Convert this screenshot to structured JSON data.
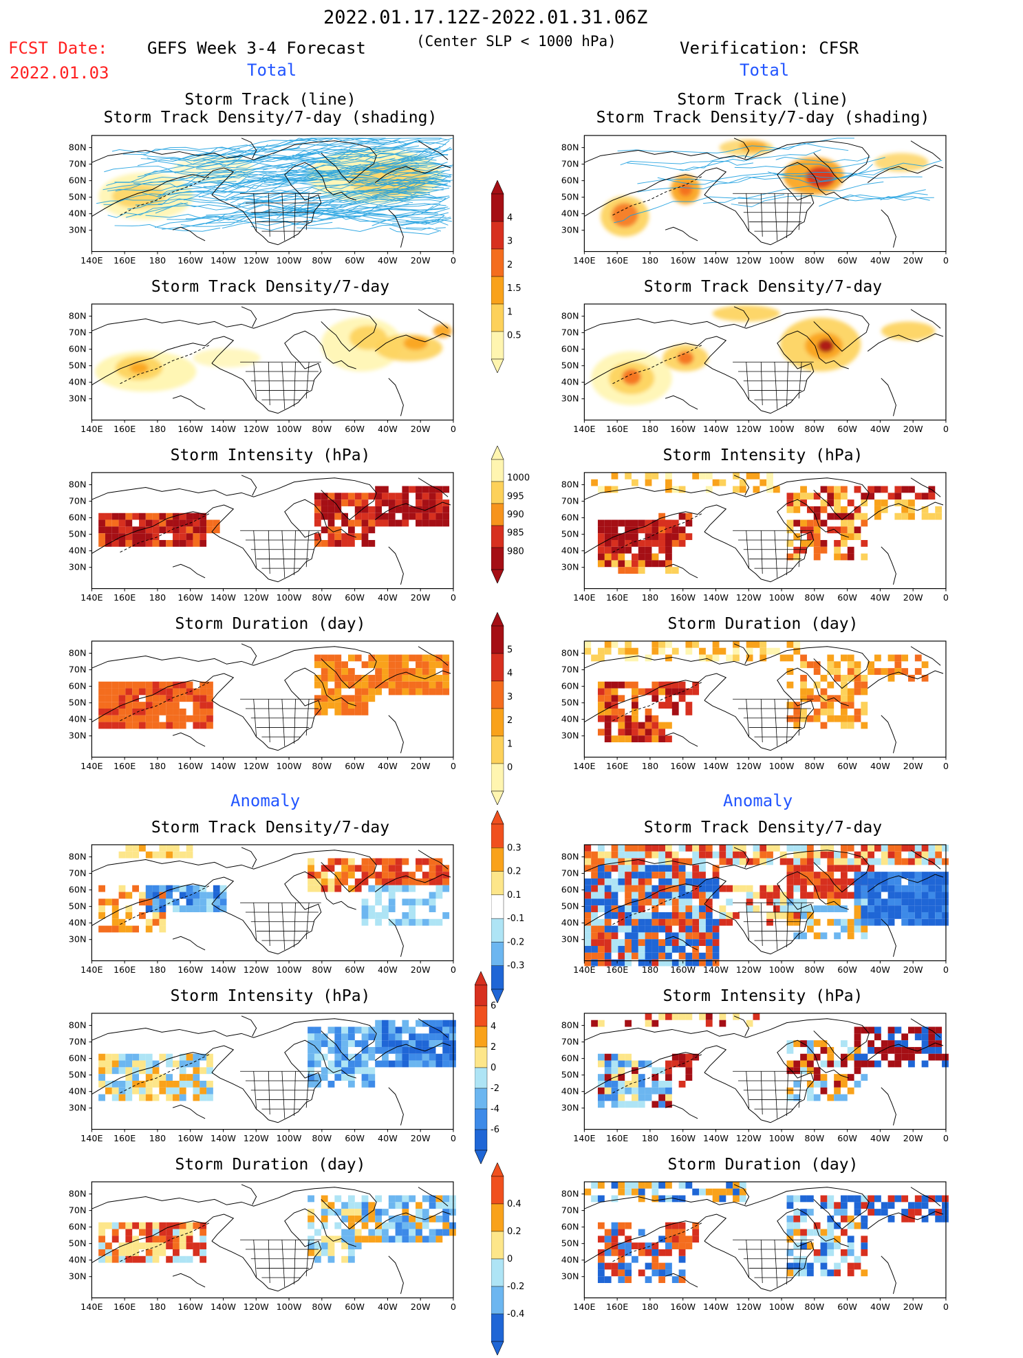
{
  "header": {
    "title": "2022.01.17.12Z-2022.01.31.06Z",
    "subtitle": "(Center SLP < 1000 hPa)",
    "fcst_label": "FCST Date:",
    "fcst_date": "2022.01.03",
    "model_title": "GEFS Week 3-4 Forecast",
    "verification_title": "Verification: CFSR"
  },
  "sections": {
    "total_label": "Total",
    "anomaly_label": "Anomaly"
  },
  "panel_titles": {
    "track_line_1": "Storm Track (line)",
    "track_line_2": "Storm Track Density/7-day (shading)",
    "density": "Storm Track Density/7-day",
    "intensity": "Storm Intensity (hPa)",
    "duration": "Storm Duration (day)"
  },
  "map_axes": {
    "lat_labels": [
      "80N",
      "70N",
      "60N",
      "50N",
      "40N",
      "30N"
    ],
    "lon_labels": [
      "140E",
      "160E",
      "180",
      "160W",
      "140W",
      "120W",
      "100W",
      "80W",
      "60W",
      "40W",
      "20W",
      "0"
    ]
  },
  "colorbars": {
    "density_total": {
      "labels": [
        "4",
        "3",
        "2",
        "1.5",
        "1",
        "0.5"
      ],
      "colors": [
        "#a50f15",
        "#d7301f",
        "#f46d1e",
        "#f9a21b",
        "#fdd15a",
        "#fff5b0"
      ]
    },
    "intensity_total": {
      "labels": [
        "1000",
        "995",
        "990",
        "985",
        "980"
      ],
      "colors": [
        "#fff5b0",
        "#fdd15a",
        "#f7941d",
        "#d7301f",
        "#a50f15"
      ]
    },
    "duration_total": {
      "labels": [
        "5",
        "4",
        "3",
        "2",
        "1",
        "0"
      ],
      "colors": [
        "#a50f15",
        "#d7301f",
        "#f46d1e",
        "#f9a21b",
        "#fdd15a",
        "#fff5b0"
      ]
    },
    "density_anom": {
      "labels": [
        "0.3",
        "0.2",
        "0.1",
        "-0.1",
        "-0.2",
        "-0.3"
      ],
      "colors": [
        "#f0501e",
        "#f9a21b",
        "#fde68a",
        "#ffffff",
        "#aee4f5",
        "#6cb6f0",
        "#1f66d6"
      ]
    },
    "intensity_anom": {
      "labels": [
        "6",
        "4",
        "2",
        "0",
        "-2",
        "-4",
        "-6"
      ],
      "colors": [
        "#d7301f",
        "#f0501e",
        "#f9a21b",
        "#fde68a",
        "#aee4f5",
        "#6cb6f0",
        "#3d8ae8",
        "#1f66d6"
      ]
    },
    "duration_anom": {
      "labels": [
        "0.4",
        "0.2",
        "0",
        "-0.2",
        "-0.4"
      ],
      "colors": [
        "#f0501e",
        "#f9a21b",
        "#fde68a",
        "#aee4f5",
        "#6cb6f0",
        "#1f66d6"
      ]
    }
  },
  "colors": {
    "track_line": "#1ea0e0",
    "title_red": "#ff2020",
    "section_blue": "#2255ff"
  }
}
